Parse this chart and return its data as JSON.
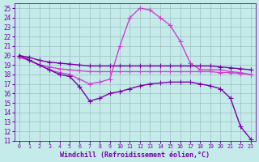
{
  "xlabel": "Windchill (Refroidissement éolien,°C)",
  "xlim": [
    -0.5,
    23.5
  ],
  "ylim": [
    11,
    25.5
  ],
  "yticks": [
    11,
    12,
    13,
    14,
    15,
    16,
    17,
    18,
    19,
    20,
    21,
    22,
    23,
    24,
    25
  ],
  "xticks": [
    0,
    1,
    2,
    3,
    4,
    5,
    6,
    7,
    8,
    9,
    10,
    11,
    12,
    13,
    14,
    15,
    16,
    17,
    18,
    19,
    20,
    21,
    22,
    23
  ],
  "bg_color": "#c5eaea",
  "grid_color": "#9dbfbf",
  "line_color_bright": "#cc44cc",
  "line_color_dark": "#7700aa",
  "line_width": 1.0,
  "marker": "+",
  "marker_size": 4,
  "lines": [
    {
      "color": "#cc44cc",
      "x": [
        0,
        1,
        2,
        3,
        4,
        5,
        6,
        7,
        8,
        9,
        10,
        11,
        12,
        13,
        14,
        15,
        16,
        17,
        18,
        19,
        20,
        21,
        22,
        23
      ],
      "y": [
        20,
        19.5,
        19,
        18.5,
        18.2,
        18,
        17.5,
        17,
        17.2,
        17.5,
        21,
        24,
        25,
        24.8,
        24,
        23.2,
        21.5,
        19.2,
        18.5,
        18.5,
        18.5,
        18.3,
        18.2,
        18.0
      ]
    },
    {
      "color": "#7700aa",
      "x": [
        0,
        1,
        2,
        3,
        4,
        5,
        6,
        7,
        8,
        9,
        10,
        11,
        12,
        13,
        14,
        15,
        16,
        17,
        18,
        19,
        20,
        21,
        22,
        23
      ],
      "y": [
        20,
        19.8,
        19.5,
        19.3,
        19.2,
        19.1,
        19.0,
        18.9,
        18.9,
        18.9,
        18.9,
        18.9,
        18.9,
        18.9,
        18.9,
        18.9,
        18.9,
        18.9,
        18.9,
        18.9,
        18.8,
        18.7,
        18.6,
        18.5
      ]
    },
    {
      "color": "#cc44cc",
      "x": [
        0,
        1,
        2,
        3,
        4,
        5,
        6,
        7,
        8,
        9,
        10,
        11,
        12,
        13,
        14,
        15,
        16,
        17,
        18,
        19,
        20,
        21,
        22,
        23
      ],
      "y": [
        19.8,
        19.5,
        19.0,
        18.8,
        18.6,
        18.5,
        18.4,
        18.3,
        18.3,
        18.3,
        18.3,
        18.3,
        18.3,
        18.3,
        18.3,
        18.3,
        18.3,
        18.3,
        18.3,
        18.3,
        18.2,
        18.2,
        18.1,
        18.0
      ]
    },
    {
      "color": "#7700aa",
      "x": [
        0,
        1,
        2,
        3,
        4,
        5,
        6,
        7,
        8,
        9,
        10,
        11,
        12,
        13,
        14,
        15,
        16,
        17,
        18,
        19,
        20,
        21,
        22,
        23
      ],
      "y": [
        20,
        19.5,
        19,
        18.5,
        18,
        17.8,
        16.7,
        15.2,
        15.5,
        16,
        16.2,
        16.5,
        16.8,
        17,
        17.1,
        17.2,
        17.2,
        17.2,
        17,
        16.8,
        16.5,
        15.5,
        12.5,
        11.2
      ]
    }
  ]
}
